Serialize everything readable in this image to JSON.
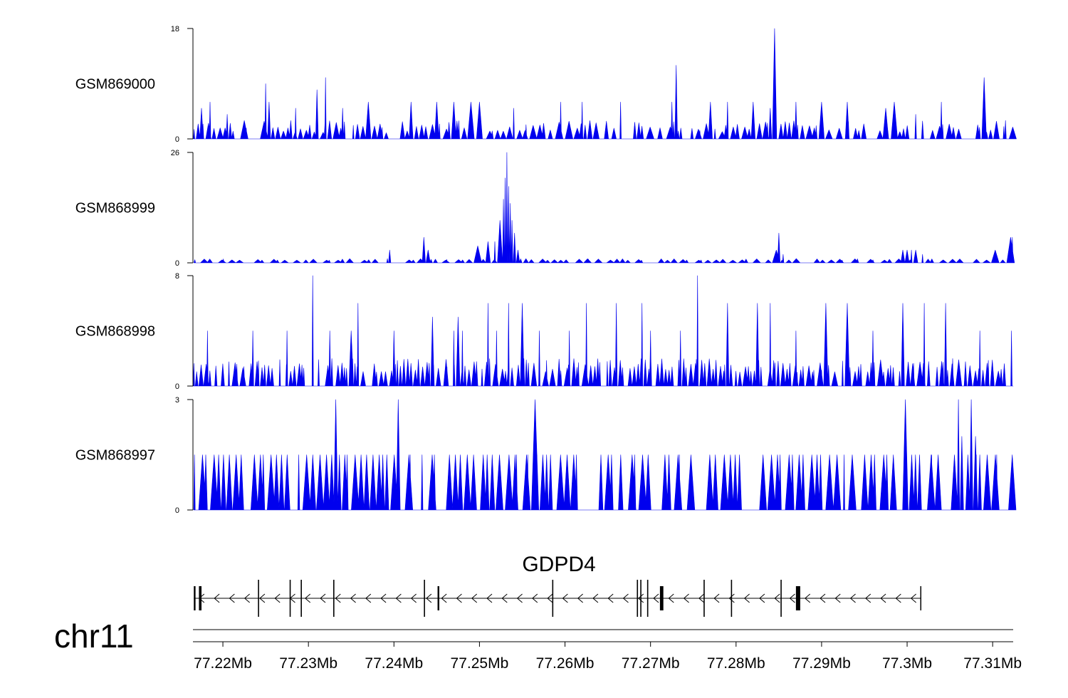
{
  "chart_data": {
    "type": "area",
    "chromosome": "chr11",
    "gene": {
      "name": "GDPD4",
      "strand": "-",
      "start": 77.2166,
      "end": 77.3016,
      "exons": [
        {
          "start": 77.2166,
          "end": 77.2168
        },
        {
          "start": 77.2172,
          "end": 77.2175
        },
        {
          "start": 77.2241,
          "end": 77.2242
        },
        {
          "start": 77.2278,
          "end": 77.2279
        },
        {
          "start": 77.2291,
          "end": 77.2292
        },
        {
          "start": 77.2329,
          "end": 77.233
        },
        {
          "start": 77.2435,
          "end": 77.2436
        },
        {
          "start": 77.2451,
          "end": 77.2453
        },
        {
          "start": 77.2585,
          "end": 77.2586
        },
        {
          "start": 77.2684,
          "end": 77.2685
        },
        {
          "start": 77.2688,
          "end": 77.2689
        },
        {
          "start": 77.2696,
          "end": 77.2697
        },
        {
          "start": 77.2711,
          "end": 77.2715
        },
        {
          "start": 77.2762,
          "end": 77.2763
        },
        {
          "start": 77.2794,
          "end": 77.2795
        },
        {
          "start": 77.2852,
          "end": 77.2853
        },
        {
          "start": 77.287,
          "end": 77.2875
        }
      ]
    },
    "x_axis": {
      "xlim": [
        77.2165,
        77.3124
      ],
      "ticks": [
        77.22,
        77.23,
        77.24,
        77.25,
        77.26,
        77.27,
        77.28,
        77.29,
        77.3,
        77.31
      ],
      "tick_labels": [
        "77.22Mb",
        "77.23Mb",
        "77.24Mb",
        "77.25Mb",
        "77.26Mb",
        "77.27Mb",
        "77.28Mb",
        "77.29Mb",
        "77.3Mb",
        "77.31Mb"
      ]
    },
    "series_color": "#0000ee",
    "tracks": [
      {
        "name": "GSM869000",
        "ylim": [
          0,
          18
        ],
        "y_ticks": [
          "0",
          "18"
        ],
        "peaks": [
          [
            77.2175,
            5
          ],
          [
            77.2185,
            6
          ],
          [
            77.2205,
            4
          ],
          [
            77.2225,
            3
          ],
          [
            77.225,
            9
          ],
          [
            77.2254,
            6
          ],
          [
            77.2285,
            5
          ],
          [
            77.231,
            8
          ],
          [
            77.232,
            10
          ],
          [
            77.234,
            5
          ],
          [
            77.237,
            6
          ],
          [
            77.242,
            6
          ],
          [
            77.245,
            6
          ],
          [
            77.247,
            6
          ],
          [
            77.249,
            6
          ],
          [
            77.25,
            6
          ],
          [
            77.254,
            5
          ],
          [
            77.2595,
            6
          ],
          [
            77.262,
            6
          ],
          [
            77.2665,
            6
          ],
          [
            77.2725,
            6
          ],
          [
            77.273,
            12
          ],
          [
            77.277,
            6
          ],
          [
            77.279,
            6
          ],
          [
            77.282,
            6
          ],
          [
            77.284,
            5
          ],
          [
            77.2845,
            18
          ],
          [
            77.287,
            6
          ],
          [
            77.29,
            6
          ],
          [
            77.293,
            6
          ],
          [
            77.2975,
            5
          ],
          [
            77.2985,
            6
          ],
          [
            77.301,
            4
          ],
          [
            77.304,
            6
          ],
          [
            77.309,
            10
          ],
          [
            77.3115,
            3
          ]
        ],
        "baseline_spike": 3,
        "baseline_count": 170,
        "baseline_min": 1,
        "seed": 11
      },
      {
        "name": "GSM868999",
        "ylim": [
          0,
          26
        ],
        "y_ticks": [
          "0",
          "26"
        ],
        "peaks": [
          [
            77.2395,
            3
          ],
          [
            77.2435,
            6
          ],
          [
            77.244,
            3
          ],
          [
            77.2498,
            4
          ],
          [
            77.251,
            5
          ],
          [
            77.2518,
            5
          ],
          [
            77.2524,
            10
          ],
          [
            77.2528,
            15
          ],
          [
            77.253,
            20
          ],
          [
            77.2532,
            26
          ],
          [
            77.2534,
            18
          ],
          [
            77.2536,
            14
          ],
          [
            77.2538,
            10
          ],
          [
            77.2541,
            7
          ],
          [
            77.2545,
            3
          ],
          [
            77.285,
            7
          ],
          [
            77.2847,
            3
          ],
          [
            77.2855,
            2
          ],
          [
            77.2995,
            3
          ],
          [
            77.3,
            3
          ],
          [
            77.3005,
            3
          ],
          [
            77.301,
            3
          ],
          [
            77.3018,
            2
          ],
          [
            77.3103,
            3
          ],
          [
            77.3121,
            6
          ],
          [
            77.3123,
            6
          ]
        ],
        "baseline_spike": 1,
        "baseline_count": 110,
        "baseline_min": 0.6,
        "seed": 23
      },
      {
        "name": "GSM868998",
        "ylim": [
          0,
          8
        ],
        "y_ticks": [
          "0",
          "8"
        ],
        "peaks": [
          [
            77.2182,
            4
          ],
          [
            77.2235,
            4
          ],
          [
            77.2275,
            4
          ],
          [
            77.2305,
            8
          ],
          [
            77.2325,
            4
          ],
          [
            77.235,
            4
          ],
          [
            77.2358,
            6
          ],
          [
            77.24,
            4
          ],
          [
            77.2445,
            5
          ],
          [
            77.247,
            4
          ],
          [
            77.2475,
            5
          ],
          [
            77.248,
            4
          ],
          [
            77.251,
            6
          ],
          [
            77.252,
            4
          ],
          [
            77.2534,
            6
          ],
          [
            77.255,
            6
          ],
          [
            77.257,
            4
          ],
          [
            77.2605,
            4
          ],
          [
            77.2625,
            6
          ],
          [
            77.266,
            6
          ],
          [
            77.269,
            6
          ],
          [
            77.27,
            4
          ],
          [
            77.2735,
            4
          ],
          [
            77.2755,
            8
          ],
          [
            77.279,
            6
          ],
          [
            77.2825,
            6
          ],
          [
            77.284,
            6
          ],
          [
            77.287,
            4
          ],
          [
            77.2905,
            6
          ],
          [
            77.293,
            6
          ],
          [
            77.296,
            4
          ],
          [
            77.2995,
            6
          ],
          [
            77.302,
            6
          ],
          [
            77.3045,
            6
          ],
          [
            77.3085,
            4
          ],
          [
            77.3122,
            4
          ]
        ],
        "baseline_spike": 2,
        "baseline_count": 230,
        "baseline_min": 1,
        "seed": 37
      },
      {
        "name": "GSM868997",
        "ylim": [
          0,
          3
        ],
        "y_ticks": [
          "0",
          "3"
        ],
        "peaks": [
          [
            77.2332,
            3
          ],
          [
            77.2405,
            3
          ],
          [
            77.2565,
            3
          ],
          [
            77.2998,
            3
          ],
          [
            77.306,
            3
          ],
          [
            77.3075,
            3
          ],
          [
            77.3064,
            2
          ],
          [
            77.308,
            2
          ]
        ],
        "baseline_spike": 1.5,
        "baseline_count": 140,
        "baseline_min": 1.5,
        "seed": 53
      }
    ]
  }
}
